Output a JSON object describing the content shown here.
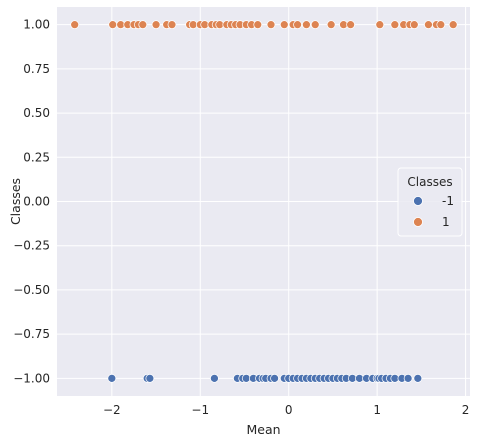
{
  "chart_data": {
    "type": "scatter",
    "title": "",
    "xlabel": "Mean",
    "ylabel": "Classes",
    "xlim": [
      -2.62,
      2.05
    ],
    "ylim": [
      -1.1,
      1.1
    ],
    "xticks": [
      -2,
      -1,
      0,
      1,
      2
    ],
    "xtick_labels": [
      "−2",
      "−1",
      "0",
      "1",
      "2"
    ],
    "yticks": [
      1.0,
      0.75,
      0.5,
      0.25,
      0.0,
      -0.25,
      -0.5,
      -0.75,
      -1.0
    ],
    "ytick_labels": [
      "1.00",
      "0.75",
      "0.50",
      "0.25",
      "0.00",
      "−0.25",
      "−0.50",
      "−0.75",
      "−1.00"
    ],
    "grid": true,
    "background": "#eaeaf2",
    "legend": {
      "title": "Classes",
      "position": "center-right",
      "entries": [
        "-1",
        "1"
      ]
    },
    "series": [
      {
        "name": "-1",
        "color": "#4c72b0",
        "y": -1,
        "x": [
          -2.0,
          -1.6,
          -1.57,
          -0.84,
          -0.58,
          -0.52,
          -0.48,
          -0.4,
          -0.33,
          -0.29,
          -0.26,
          -0.2,
          -0.16,
          -0.05,
          0.0,
          0.05,
          0.1,
          0.15,
          0.2,
          0.25,
          0.3,
          0.35,
          0.4,
          0.45,
          0.5,
          0.55,
          0.6,
          0.65,
          0.72,
          0.8,
          0.88,
          0.95,
          1.0,
          1.02,
          1.05,
          1.1,
          1.15,
          1.2,
          1.28,
          1.35,
          1.46
        ]
      },
      {
        "name": "1",
        "color": "#dd8452",
        "y": 1,
        "x": [
          -2.42,
          -1.99,
          -1.9,
          -1.82,
          -1.75,
          -1.7,
          -1.65,
          -1.5,
          -1.38,
          -1.32,
          -1.12,
          -1.08,
          -1.0,
          -0.95,
          -0.87,
          -0.82,
          -0.78,
          -0.7,
          -0.65,
          -0.6,
          -0.55,
          -0.48,
          -0.42,
          -0.35,
          -0.2,
          -0.05,
          0.05,
          0.1,
          0.2,
          0.3,
          0.48,
          0.62,
          0.7,
          1.03,
          1.2,
          1.3,
          1.37,
          1.42,
          1.58,
          1.67,
          1.72,
          1.86
        ]
      }
    ]
  }
}
